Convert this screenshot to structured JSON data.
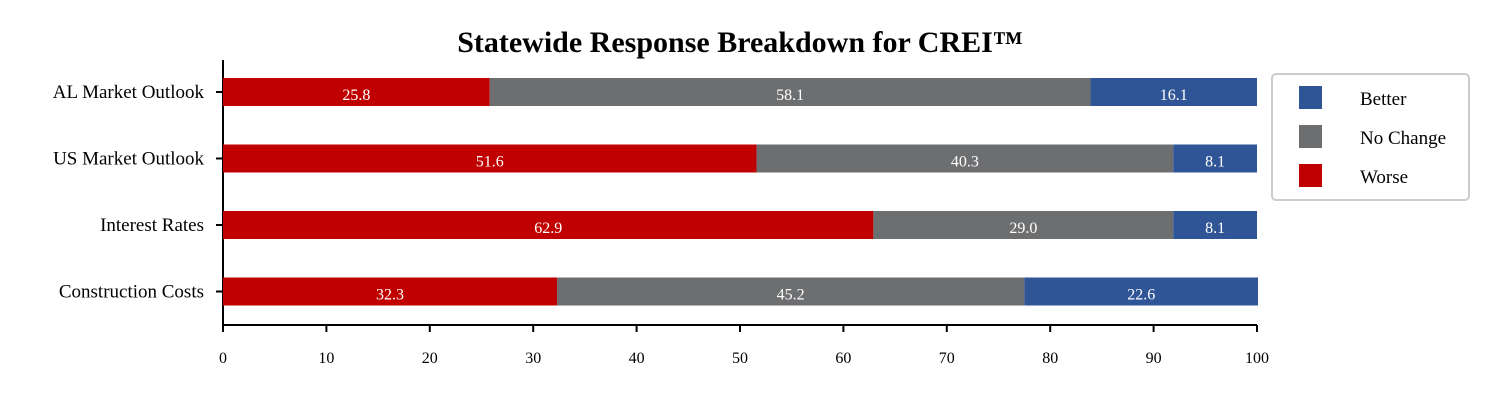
{
  "chart_data": {
    "type": "bar",
    "orientation": "horizontal",
    "stacked": true,
    "title": "Statewide Response Breakdown for CREI™",
    "xlabel": "",
    "ylabel": "",
    "categories": [
      "AL Market Outlook",
      "US Market Outlook",
      "Interest Rates",
      "Construction Costs"
    ],
    "series": [
      {
        "name": "Worse",
        "color": "#c00000",
        "values": [
          25.8,
          51.6,
          62.9,
          32.3
        ]
      },
      {
        "name": "No Change",
        "color": "#6d6e70",
        "values": [
          58.1,
          40.3,
          29.0,
          45.2
        ]
      },
      {
        "name": "Better",
        "color": "#2f5597",
        "values": [
          16.1,
          8.1,
          8.1,
          22.6
        ]
      }
    ],
    "xlim": [
      0,
      100
    ],
    "xticks": [
      0,
      10,
      20,
      30,
      40,
      50,
      60,
      70,
      80,
      90,
      100
    ],
    "grid": false,
    "data_labels": true,
    "legend": {
      "placement": "right-top",
      "order": [
        "Better",
        "No Change",
        "Worse"
      ]
    }
  }
}
